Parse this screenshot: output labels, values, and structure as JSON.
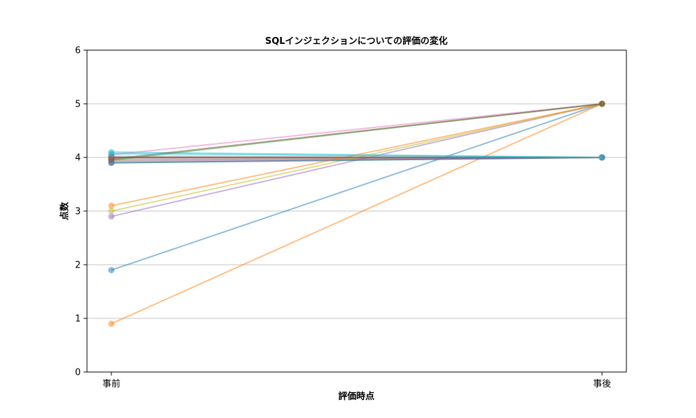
{
  "chart_data": {
    "type": "line",
    "title": "SQLインジェクションについての評価の変化",
    "xlabel": "評価時点",
    "ylabel": "点数",
    "categories": [
      "事前",
      "事後"
    ],
    "ylim": [
      0,
      6
    ],
    "yticks": [
      "0",
      "1",
      "2",
      "3",
      "4",
      "5",
      "6"
    ],
    "grid": "y",
    "legend": "none",
    "series": [
      {
        "values": [
          1.9,
          5.0
        ],
        "color": "#1f77b4"
      },
      {
        "values": [
          0.9,
          5.0
        ],
        "color": "#ff7f0e"
      },
      {
        "values": [
          3.9,
          4.0
        ],
        "color": "#2ca02c"
      },
      {
        "values": [
          4.0,
          4.0
        ],
        "color": "#d62728"
      },
      {
        "values": [
          2.9,
          5.0
        ],
        "color": "#9467bd"
      },
      {
        "values": [
          3.95,
          4.0
        ],
        "color": "#8c564b"
      },
      {
        "values": [
          4.05,
          5.0
        ],
        "color": "#e377c2"
      },
      {
        "values": [
          3.98,
          4.0
        ],
        "color": "#7f7f7f"
      },
      {
        "values": [
          3.0,
          5.0
        ],
        "color": "#bcbd22"
      },
      {
        "values": [
          4.1,
          4.0
        ],
        "color": "#17becf"
      },
      {
        "values": [
          3.9,
          4.0
        ],
        "color": "#1f77b4"
      },
      {
        "values": [
          3.1,
          5.0
        ],
        "color": "#ff7f0e"
      },
      {
        "values": [
          3.95,
          5.0
        ],
        "color": "#2ca02c"
      },
      {
        "values": [
          4.0,
          4.0
        ],
        "color": "#d62728"
      },
      {
        "values": [
          3.92,
          4.0
        ],
        "color": "#9467bd"
      },
      {
        "values": [
          3.97,
          5.0
        ],
        "color": "#8c564b"
      },
      {
        "values": [
          4.02,
          4.0
        ],
        "color": "#7f7f7f"
      },
      {
        "values": [
          4.07,
          4.0
        ],
        "color": "#17becf"
      }
    ]
  }
}
